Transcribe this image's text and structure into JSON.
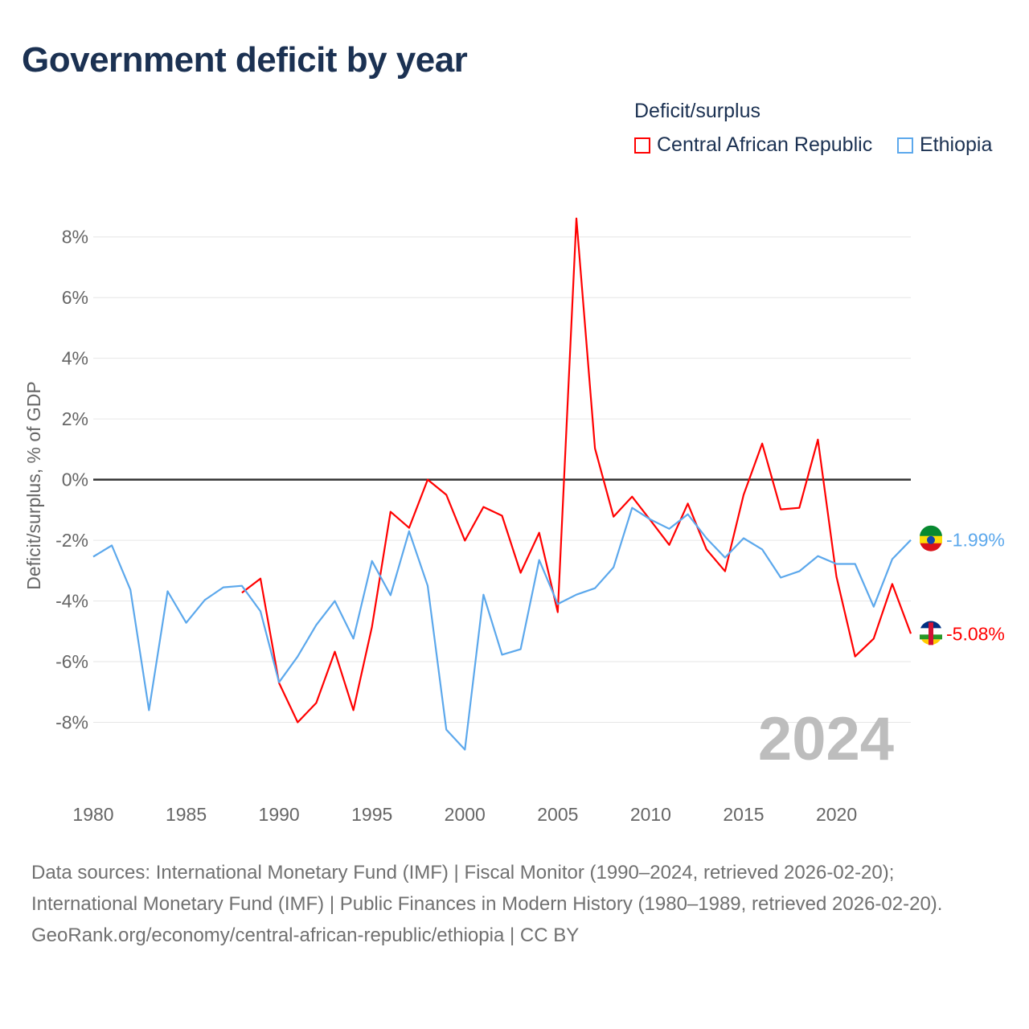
{
  "title": "Government deficit by year",
  "legend": {
    "title": "Deficit/surplus"
  },
  "sources": {
    "line1": "Data sources: International Monetary Fund (IMF) | Fiscal Monitor (1990–2024, retrieved 2026-02-20); International Monetary Fund (IMF) | Public Finances in Modern History (1980–1989, retrieved 2026-02-20).",
    "line2": "GeoRank.org/economy/central-african-republic/ethiopia | CC BY"
  },
  "chart_data": {
    "type": "line",
    "title": "Government deficit by year",
    "xlabel": "",
    "ylabel": "Deficit/surplus, % of GDP",
    "xlim": [
      1980,
      2024
    ],
    "ylim": [
      -10,
      9
    ],
    "xticks": [
      1980,
      1985,
      1990,
      1995,
      2000,
      2005,
      2010,
      2015,
      2020
    ],
    "xtick_labels": [
      "1980",
      "1985",
      "1990",
      "1995",
      "2000",
      "2005",
      "2010",
      "2015",
      "2020"
    ],
    "yticks": [
      8,
      6,
      4,
      2,
      0,
      -2,
      -4,
      -6,
      -8
    ],
    "ytick_labels": [
      "8%",
      "6%",
      "4%",
      "2%",
      "0%",
      "-2%",
      "-4%",
      "-6%",
      "-8%"
    ],
    "grid": true,
    "legend_position": "top-right",
    "year_label": "2024",
    "series": [
      {
        "name": "Central African Republic",
        "color": "#ff0000",
        "end_label": "-5.08%",
        "x": [
          1988,
          1989,
          1990,
          1991,
          1992,
          1993,
          1994,
          1995,
          1996,
          1997,
          1998,
          1999,
          2000,
          2001,
          2002,
          2003,
          2004,
          2005,
          2006,
          2007,
          2008,
          2009,
          2010,
          2011,
          2012,
          2013,
          2014,
          2015,
          2016,
          2017,
          2018,
          2019,
          2020,
          2021,
          2022,
          2023,
          2024
        ],
        "values": [
          -3.73,
          -3.26,
          -6.7,
          -8.0,
          -7.36,
          -5.67,
          -7.6,
          -4.85,
          -1.06,
          -1.59,
          0.0,
          -0.5,
          -2.01,
          -0.9,
          -1.19,
          -3.07,
          -1.75,
          -4.37,
          8.61,
          1.03,
          -1.22,
          -0.56,
          -1.35,
          -2.15,
          -0.79,
          -2.3,
          -3.02,
          -0.5,
          1.19,
          -0.98,
          -0.93,
          1.32,
          -3.2,
          -5.83,
          -5.24,
          -3.44,
          -5.08
        ]
      },
      {
        "name": "Ethiopia",
        "color": "#5ca8ec",
        "end_label": "-1.99%",
        "x": [
          1980,
          1981,
          1982,
          1983,
          1984,
          1985,
          1986,
          1987,
          1988,
          1989,
          1990,
          1991,
          1992,
          1993,
          1994,
          1995,
          1996,
          1997,
          1998,
          1999,
          2000,
          2001,
          2002,
          2003,
          2004,
          2005,
          2006,
          2007,
          2008,
          2009,
          2010,
          2011,
          2012,
          2013,
          2014,
          2015,
          2016,
          2017,
          2018,
          2019,
          2020,
          2021,
          2022,
          2023,
          2024
        ],
        "values": [
          -2.54,
          -2.17,
          -3.63,
          -7.6,
          -3.68,
          -4.72,
          -3.97,
          -3.55,
          -3.5,
          -4.34,
          -6.68,
          -5.83,
          -4.79,
          -4.0,
          -5.24,
          -2.68,
          -3.81,
          -1.7,
          -3.5,
          -8.24,
          -8.9,
          -3.79,
          -5.77,
          -5.59,
          -2.65,
          -4.1,
          -3.79,
          -3.58,
          -2.89,
          -0.93,
          -1.32,
          -1.62,
          -1.14,
          -1.93,
          -2.57,
          -1.93,
          -2.3,
          -3.23,
          -3.02,
          -2.52,
          -2.78,
          -2.78,
          -4.19,
          -2.62,
          -1.99
        ]
      }
    ]
  }
}
